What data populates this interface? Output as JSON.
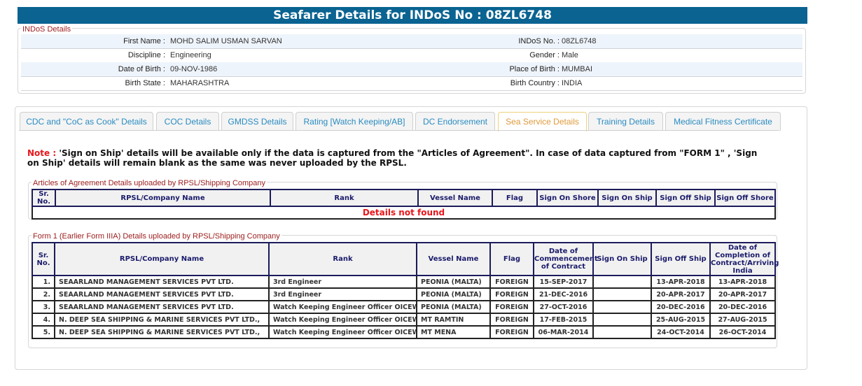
{
  "header": {
    "title": "Seafarer Details for INDoS No : 08ZL6748"
  },
  "indos": {
    "legend": "INDoS Details",
    "rows": [
      {
        "l1": "First Name :",
        "v1": "MOHD SALIM USMAN SARVAN",
        "l2": "INDoS No. :",
        "v2": "08ZL6748"
      },
      {
        "l1": "Discipline :",
        "v1": "Engineering",
        "l2": "Gender :",
        "v2": "Male"
      },
      {
        "l1": "Date of Birth :",
        "v1": "09-NOV-1986",
        "l2": "Place of Birth :",
        "v2": "MUMBAI"
      },
      {
        "l1": "Birth State :",
        "v1": "MAHARASHTRA",
        "l2": "Birth Country :",
        "v2": "INDIA"
      }
    ]
  },
  "tabs": [
    {
      "label": "CDC and \"CoC as Cook\" Details"
    },
    {
      "label": "COC Details"
    },
    {
      "label": "GMDSS Details"
    },
    {
      "label": "Rating [Watch Keeping/AB]"
    },
    {
      "label": "DC Endorsement"
    },
    {
      "label": "Sea Service Details",
      "active": true
    },
    {
      "label": "Training Details"
    },
    {
      "label": "Medical Fitness Certificate"
    }
  ],
  "note": {
    "label": "Note :",
    "text": " 'Sign on Ship' details will be available only if the data is captured from the \"Articles of Agreement\". In case of data captured from \"FORM 1\" , 'Sign on Ship' details will remain blank as the same was never uploaded by the RPSL."
  },
  "aoa": {
    "legend": "Articles of Agreement Details uploaded by RPSL/Shipping Company",
    "headers": [
      "Sr. No.",
      "RPSL/Company Name",
      "Rank",
      "Vessel Name",
      "Flag",
      "Sign On Shore",
      "Sign On Ship",
      "Sign Off Ship",
      "Sign Off Shore"
    ],
    "empty": "Details not found"
  },
  "form1": {
    "legend": "Form 1 (Earlier Form IIIA) Details uploaded by RPSL/Shipping Company",
    "headers": [
      "Sr. No.",
      "RPSL/Company Name",
      "Rank",
      "Vessel Name",
      "Flag",
      "Date of Commencement of Contract",
      "Sign On Ship",
      "Sign Off Ship",
      "Date of Completion of Contract/Arriving India"
    ],
    "rows": [
      [
        "1.",
        "SEAARLAND MANAGEMENT SERVICES PVT LTD.",
        "3rd Engineer",
        "PEONIA (MALTA)",
        "FOREIGN",
        "15-SEP-2017",
        "",
        "13-APR-2018",
        "13-APR-2018"
      ],
      [
        "2.",
        "SEAARLAND MANAGEMENT SERVICES PVT LTD.",
        "3rd Engineer",
        "PEONIA (MALTA)",
        "FOREIGN",
        "21-DEC-2016",
        "",
        "20-APR-2017",
        "20-APR-2017"
      ],
      [
        "3.",
        "SEAARLAND MANAGEMENT SERVICES PVT LTD.",
        "Watch Keeping Engineer Officer OICEW",
        "PEONIA (MALTA)",
        "FOREIGN",
        "27-OCT-2016",
        "",
        "20-DEC-2016",
        "20-DEC-2016"
      ],
      [
        "4.",
        "N. DEEP SEA SHIPPING & MARINE SERVICES PVT LTD.,",
        "Watch Keeping Engineer Officer OICEW",
        "MT RAMTIN",
        "FOREIGN",
        "17-FEB-2015",
        "",
        "25-AUG-2015",
        "27-AUG-2015"
      ],
      [
        "5.",
        "N. DEEP SEA SHIPPING & MARINE SERVICES PVT LTD.,",
        "Watch Keeping Engineer Officer OICEW",
        "MT MENA",
        "FOREIGN",
        "06-MAR-2014",
        "",
        "24-OCT-2014",
        "26-OCT-2014"
      ]
    ]
  }
}
